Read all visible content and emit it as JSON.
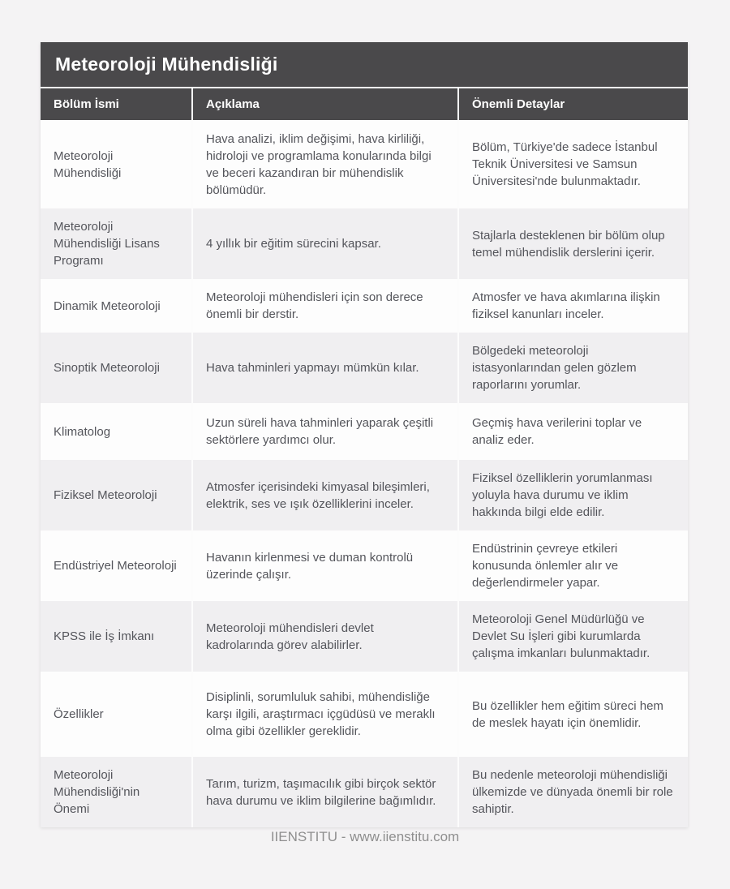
{
  "title": "Meteoroloji Mühendisliği",
  "table": {
    "columns": [
      "Bölüm İsmi",
      "Açıklama",
      "Önemli Detaylar"
    ],
    "rows": [
      {
        "name": "Meteoroloji Mühendisliği",
        "desc": "Hava analizi, iklim değişimi, hava kirliliği, hidroloji ve programlama konularında bilgi ve beceri kazandıran bir mühendislik bölümüdür.",
        "detail": "Bölüm, Türkiye'de sadece İstanbul Teknik Üniversitesi ve Samsun Üniversitesi'nde bulunmaktadır."
      },
      {
        "name": "Meteoroloji Mühendisliği Lisans Programı",
        "desc": "4 yıllık bir eğitim sürecini kapsar.",
        "detail": "Stajlarla desteklenen bir bölüm olup temel mühendislik derslerini içerir."
      },
      {
        "name": "Dinamik Meteoroloji",
        "desc": "Meteoroloji mühendisleri için son derece önemli bir derstir.",
        "detail": "Atmosfer ve hava akımlarına ilişkin fiziksel kanunları inceler."
      },
      {
        "name": "Sinoptik Meteoroloji",
        "desc": "Hava tahminleri yapmayı mümkün kılar.",
        "detail": "Bölgedeki meteoroloji istasyonlarından gelen gözlem raporlarını yorumlar."
      },
      {
        "name": "Klimatolog",
        "desc": "Uzun süreli hava tahminleri yaparak çeşitli sektörlere yardımcı olur.",
        "detail": "Geçmiş hava verilerini toplar ve analiz eder."
      },
      {
        "name": "Fiziksel Meteoroloji",
        "desc": "Atmosfer içerisindeki kimyasal bileşimleri, elektrik, ses ve ışık özelliklerini inceler.",
        "detail": "Fiziksel özelliklerin yorumlanması yoluyla hava durumu ve iklim hakkında bilgi elde edilir."
      },
      {
        "name": "Endüstriyel Meteoroloji",
        "desc": "Havanın kirlenmesi ve duman kontrolü üzerinde çalışır.",
        "detail": "Endüstrinin çevreye etkileri konusunda önlemler alır ve değerlendirmeler yapar."
      },
      {
        "name": "KPSS ile İş İmkanı",
        "desc": "Meteoroloji mühendisleri devlet kadrolarında görev alabilirler.",
        "detail": "Meteoroloji Genel Müdürlüğü ve Devlet Su İşleri gibi kurumlarda çalışma imkanları bulunmaktadır."
      },
      {
        "name": "Özellikler",
        "desc": "Disiplinli, sorumluluk sahibi, mühendisliğe karşı ilgili, araştırmacı içgüdüsü ve meraklı olma gibi özellikler gereklidir.",
        "detail": "Bu özellikler hem eğitim süreci hem de meslek hayatı için önemlidir."
      },
      {
        "name": "Meteoroloji Mühendisliği'nin Önemi",
        "desc": "Tarım, turizm, taşımacılık gibi birçok sektör hava durumu ve iklim bilgilerine bağımlıdır.",
        "detail": "Bu nedenle meteoroloji mühendisliği ülkemizde ve dünyada önemli bir role sahiptir."
      }
    ]
  },
  "footer": {
    "text": "IIENSTITU - www.iienstitu.com"
  },
  "colors": {
    "header_bg": "#4a494b",
    "page_bg": "#f4f3f4",
    "row_white": "#fdfdfd",
    "row_stripe": "#f0eff1",
    "body_text": "#54555b",
    "header_text": "#ffffff",
    "footer_text": "#8f8f8f"
  }
}
